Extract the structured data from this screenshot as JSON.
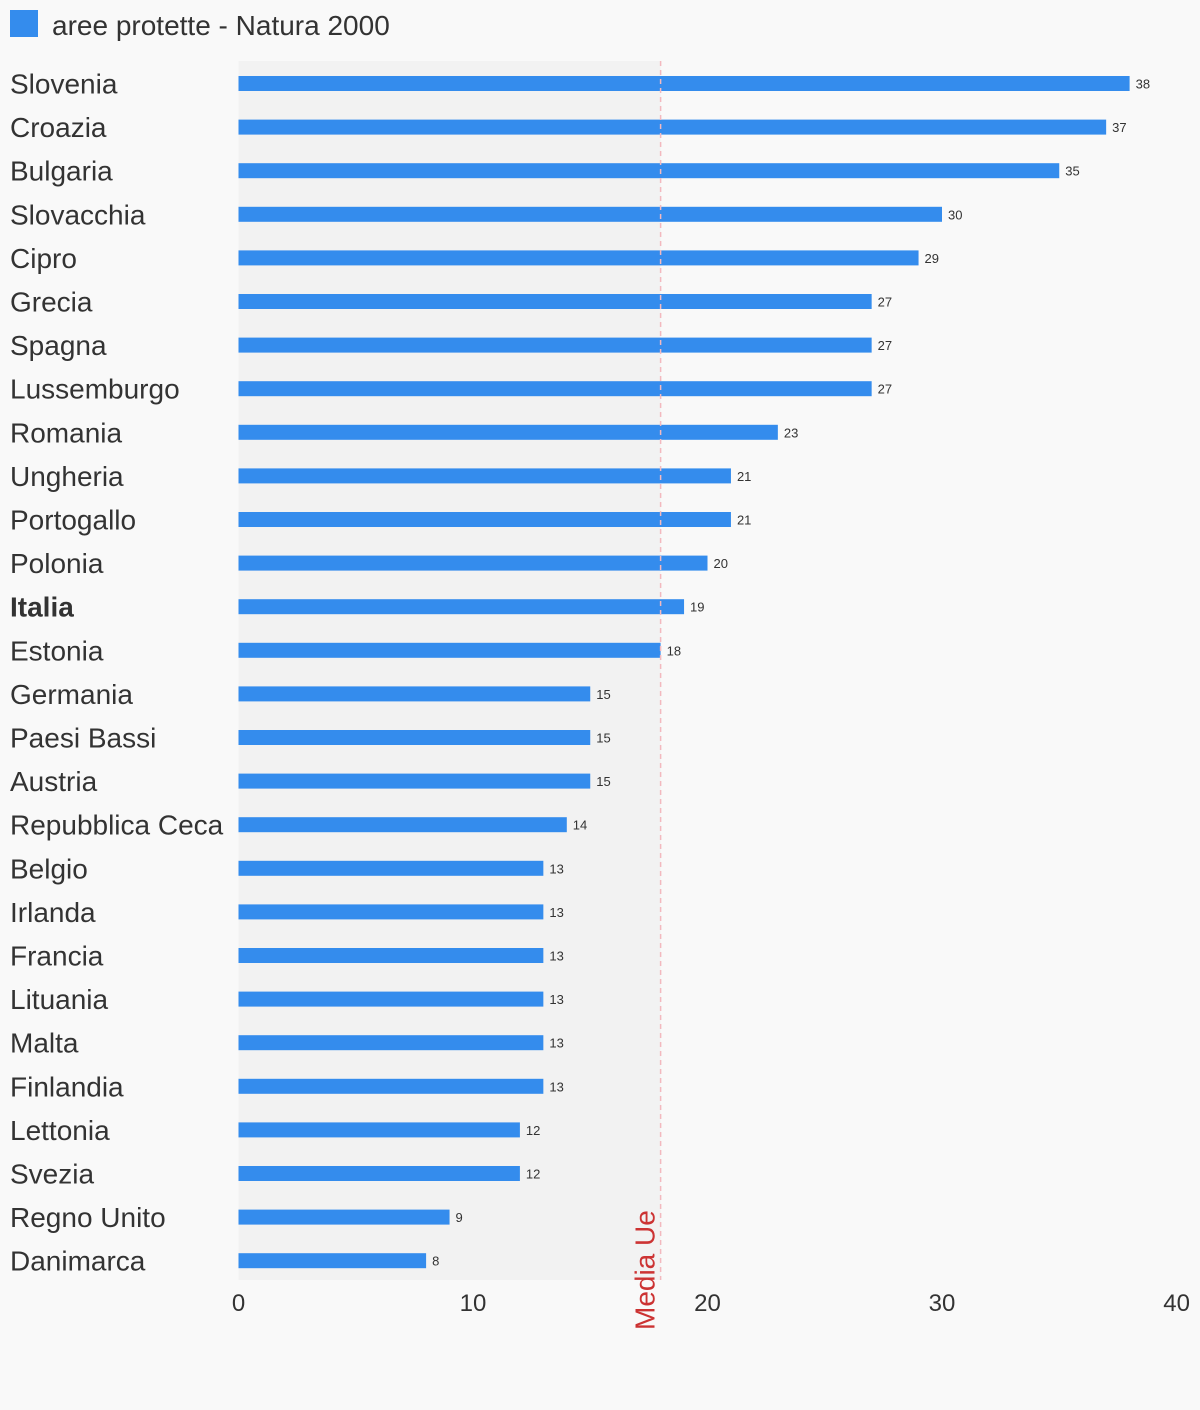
{
  "chart_data": {
    "type": "bar",
    "orientation": "horizontal",
    "series": [
      {
        "name": "aree protette - Natura 2000",
        "color": "#348ced",
        "values": [
          38,
          37,
          35,
          30,
          29,
          27,
          27,
          27,
          23,
          21,
          21,
          20,
          19,
          18,
          15,
          15,
          15,
          14,
          13,
          13,
          13,
          13,
          13,
          13,
          12,
          12,
          9,
          8
        ]
      }
    ],
    "categories": [
      "Slovenia",
      "Croazia",
      "Bulgaria",
      "Slovacchia",
      "Cipro",
      "Grecia",
      "Spagna",
      "Lussemburgo",
      "Romania",
      "Ungheria",
      "Portogallo",
      "Polonia",
      "Italia",
      "Estonia",
      "Germania",
      "Paesi Bassi",
      "Austria",
      "Repubblica Ceca",
      "Belgio",
      "Irlanda",
      "Francia",
      "Lituania",
      "Malta",
      "Finlandia",
      "Lettonia",
      "Svezia",
      "Regno Unito",
      "Danimarca"
    ],
    "highlighted_category": "Italia",
    "xlim": [
      0,
      40
    ],
    "xticks": [
      0,
      10,
      20,
      30,
      40
    ],
    "reference_line": {
      "label": "Media Ue",
      "value": 18,
      "color": "#cc3333"
    },
    "shaded_band": [
      0,
      18
    ],
    "grid": false,
    "legend_position": "top-left"
  }
}
